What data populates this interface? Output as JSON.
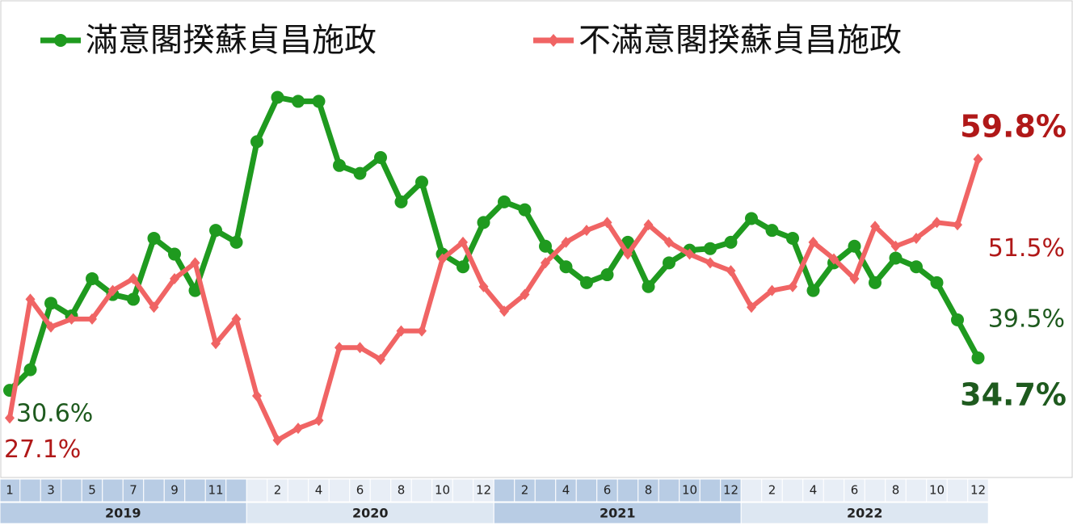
{
  "chart_data": {
    "type": "line",
    "categories": [
      "1",
      null,
      "3",
      null,
      "5",
      null,
      "7",
      null,
      "9",
      null,
      "11",
      null,
      null,
      "2",
      null,
      "4",
      null,
      "6",
      null,
      "8",
      null,
      "10",
      null,
      "12",
      null,
      "2",
      null,
      "4",
      null,
      "6",
      null,
      "8",
      null,
      "10",
      null,
      "12",
      null,
      "2",
      null,
      "4",
      null,
      "6",
      null,
      "8",
      null,
      "10",
      null,
      "12"
    ],
    "x_groups": [
      "2019",
      "2020",
      "2021",
      "2022"
    ],
    "ylim": [
      20,
      70
    ],
    "legend": "top",
    "series": [
      {
        "name": "滿意閣揆蘇貞昌施政",
        "color": "#1f9a1f",
        "label_color": "#1e5a1e",
        "values": [
          30.6,
          33.2,
          41.6,
          40.0,
          44.7,
          42.7,
          42.1,
          49.8,
          47.8,
          43.2,
          50.8,
          49.3,
          62.0,
          67.6,
          67.1,
          67.1,
          59.0,
          58.0,
          60.0,
          54.4,
          56.9,
          47.8,
          46.2,
          51.8,
          54.4,
          53.4,
          48.8,
          46.2,
          44.2,
          45.2,
          49.3,
          43.7,
          46.7,
          48.3,
          48.5,
          49.3,
          52.3,
          50.8,
          49.8,
          43.2,
          46.7,
          48.8,
          44.2,
          47.3,
          46.2,
          44.2,
          39.5,
          34.7
        ],
        "value_labels": [
          "30.6%",
          null,
          null,
          null,
          null,
          null,
          null,
          null,
          null,
          null,
          null,
          null,
          null,
          null,
          null,
          null,
          null,
          null,
          null,
          null,
          null,
          null,
          null,
          null,
          null,
          null,
          null,
          null,
          null,
          null,
          null,
          null,
          null,
          null,
          null,
          null,
          null,
          null,
          null,
          null,
          null,
          null,
          null,
          null,
          null,
          null,
          "39.5%",
          "34.7%"
        ]
      },
      {
        "name": "不滿意閣揆蘇貞昌施政",
        "color": "#f06464",
        "label_color": "#b01818",
        "values": [
          27.1,
          42.1,
          38.6,
          39.6,
          39.6,
          43.2,
          44.7,
          41.1,
          44.7,
          46.7,
          36.5,
          39.6,
          29.9,
          24.3,
          25.8,
          26.8,
          36.0,
          36.0,
          34.5,
          38.1,
          38.1,
          47.2,
          49.3,
          43.7,
          40.6,
          42.7,
          46.7,
          49.3,
          50.8,
          51.8,
          47.8,
          51.5,
          49.3,
          47.8,
          46.7,
          45.7,
          41.1,
          43.2,
          43.7,
          49.3,
          47.2,
          44.7,
          51.3,
          48.8,
          49.8,
          51.8,
          51.5,
          59.8
        ],
        "value_labels": [
          "27.1%",
          null,
          null,
          null,
          null,
          null,
          null,
          null,
          null,
          null,
          null,
          null,
          null,
          null,
          null,
          null,
          null,
          null,
          null,
          null,
          null,
          null,
          null,
          null,
          null,
          null,
          null,
          null,
          null,
          null,
          null,
          null,
          null,
          null,
          null,
          null,
          null,
          null,
          null,
          null,
          null,
          null,
          null,
          null,
          null,
          null,
          "51.5%",
          "59.8%"
        ]
      }
    ]
  }
}
